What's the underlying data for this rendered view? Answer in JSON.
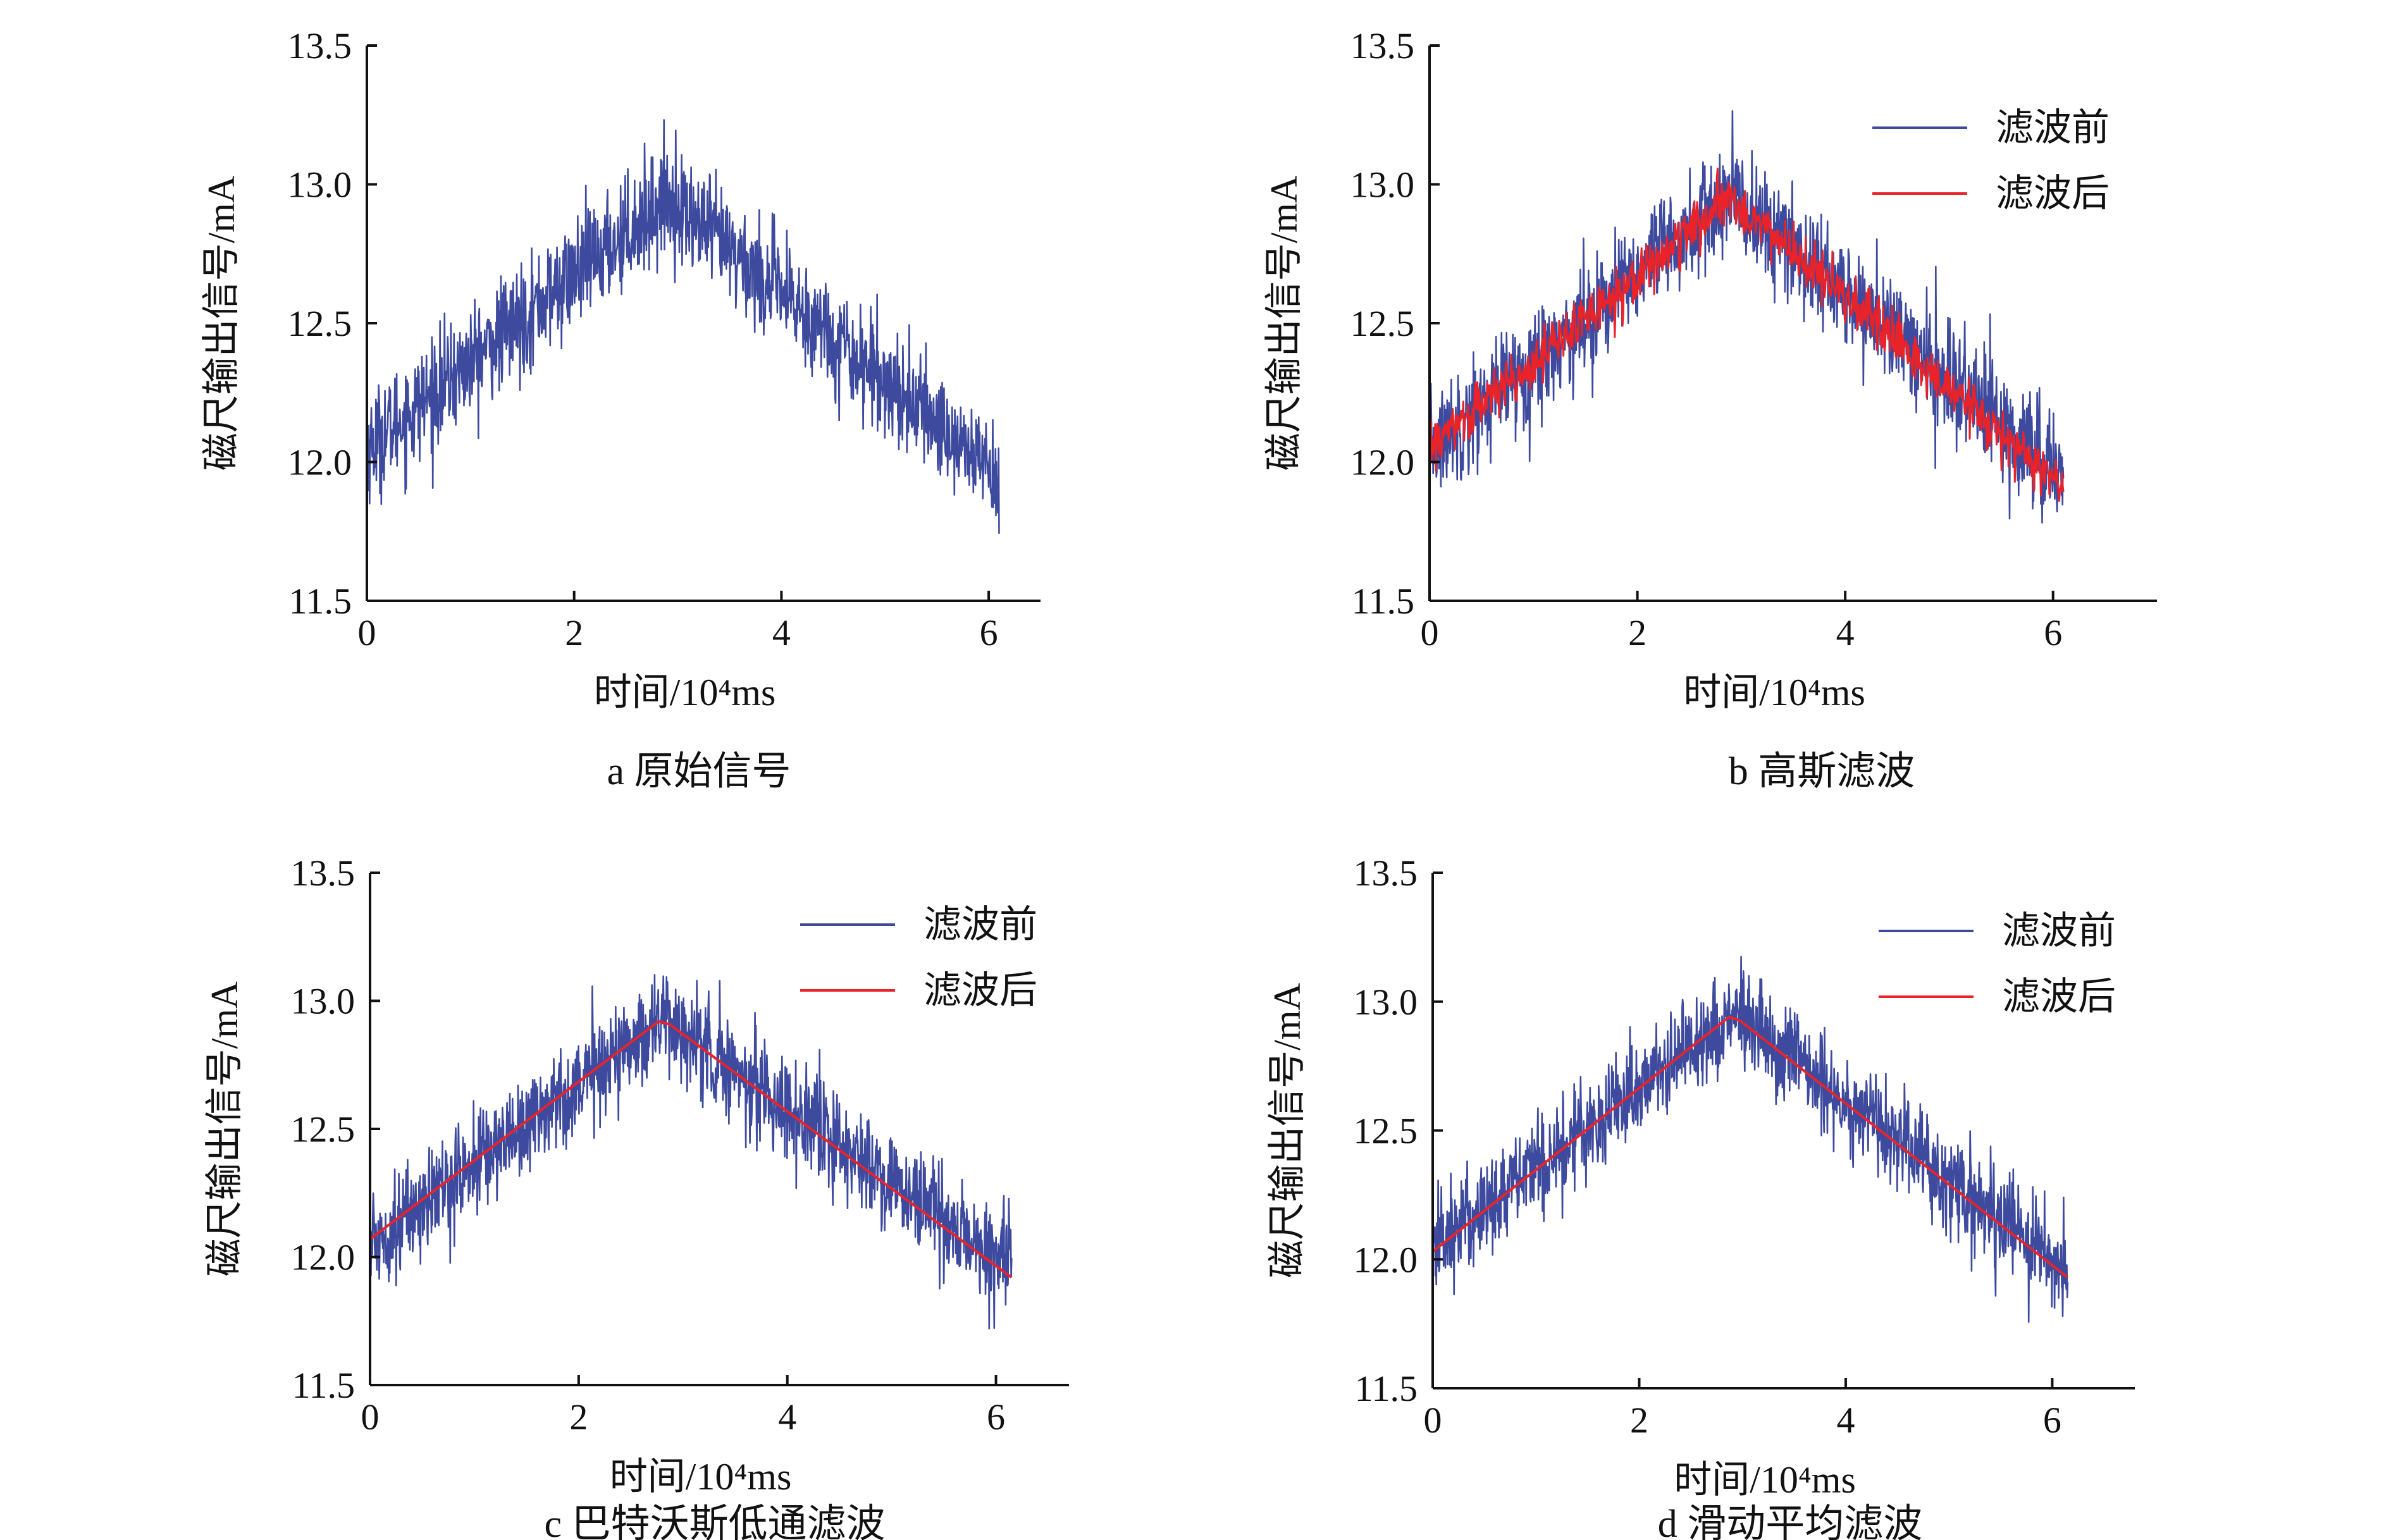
{
  "colors": {
    "before": "#3d4a9e",
    "after": "#e8232a",
    "axis": "#111111"
  },
  "chart_data": [
    {
      "type": "line",
      "panel": "a",
      "caption": "a  原始信号",
      "xlabel": "时间/10⁴ms",
      "ylabel": "磁尺输出信号/mA",
      "xlim": [
        0,
        6.5
      ],
      "ylim": [
        11.5,
        13.5
      ],
      "xticks": [
        "0",
        "2",
        "4",
        "6"
      ],
      "yticks": [
        "11.5",
        "12.0",
        "12.5",
        "13.0",
        "13.5"
      ],
      "legend": [],
      "series": [
        {
          "name": "原始信号",
          "color": "#3d4a9e",
          "x": [
            0,
            2.9,
            6.1
          ],
          "center": [
            12.05,
            12.95,
            11.95
          ],
          "noise": 0.13
        }
      ]
    },
    {
      "type": "line",
      "panel": "b",
      "caption": "b  高斯滤波",
      "xlabel": "时间/10⁴ms",
      "ylabel": "磁尺输出信号/mA",
      "xlim": [
        0,
        7
      ],
      "ylim": [
        11.5,
        13.5
      ],
      "xticks": [
        "0",
        "2",
        "4",
        "6"
      ],
      "yticks": [
        "11.5",
        "12.0",
        "12.5",
        "13.0",
        "13.5"
      ],
      "legend": [
        "滤波前",
        "滤波后"
      ],
      "series": [
        {
          "name": "滤波前",
          "color": "#3d4a9e",
          "x": [
            0,
            2.9,
            6.1
          ],
          "center": [
            12.05,
            12.95,
            11.95
          ],
          "noise": 0.13
        },
        {
          "name": "滤波后",
          "color": "#e8232a",
          "x": [
            0,
            2.9,
            6.1
          ],
          "center": [
            12.05,
            12.95,
            11.9
          ],
          "noise": 0.05
        }
      ]
    },
    {
      "type": "line",
      "panel": "c",
      "caption": "c  巴特沃斯低通滤波",
      "xlabel": "时间/10⁴ms",
      "ylabel": "磁尺输出信号/mA",
      "xlim": [
        0,
        6.7
      ],
      "ylim": [
        11.5,
        13.5
      ],
      "xticks": [
        "0",
        "2",
        "4",
        "6"
      ],
      "yticks": [
        "11.5",
        "12.0",
        "12.5",
        "13.0",
        "13.5"
      ],
      "legend": [
        "滤波前",
        "滤波后"
      ],
      "series": [
        {
          "name": "滤波前",
          "color": "#3d4a9e",
          "x": [
            0,
            2.8,
            6.15
          ],
          "center": [
            12.05,
            12.93,
            11.95
          ],
          "noise": 0.13
        },
        {
          "name": "滤波后",
          "color": "#e8232a",
          "x": [
            0,
            2.8,
            6.15
          ],
          "center": [
            12.07,
            12.93,
            11.92
          ],
          "noise": 0.0
        }
      ]
    },
    {
      "type": "line",
      "panel": "d",
      "caption": "d  滑动平均滤波",
      "xlabel": "时间/10⁴ms",
      "ylabel": "磁尺输出信号/mA",
      "xlim": [
        0,
        6.8
      ],
      "ylim": [
        11.5,
        13.5
      ],
      "xticks": [
        "0",
        "2",
        "4",
        "6"
      ],
      "yticks": [
        "11.5",
        "12.0",
        "12.5",
        "13.0",
        "13.5"
      ],
      "legend": [
        "滤波前",
        "滤波后"
      ],
      "series": [
        {
          "name": "滤波前",
          "color": "#3d4a9e",
          "x": [
            0,
            2.9,
            6.15
          ],
          "center": [
            12.05,
            12.95,
            11.95
          ],
          "noise": 0.13
        },
        {
          "name": "滤波后",
          "color": "#e8232a",
          "x": [
            0,
            2.9,
            6.15
          ],
          "center": [
            12.03,
            12.95,
            11.93
          ],
          "noise": 0.0
        }
      ]
    }
  ]
}
